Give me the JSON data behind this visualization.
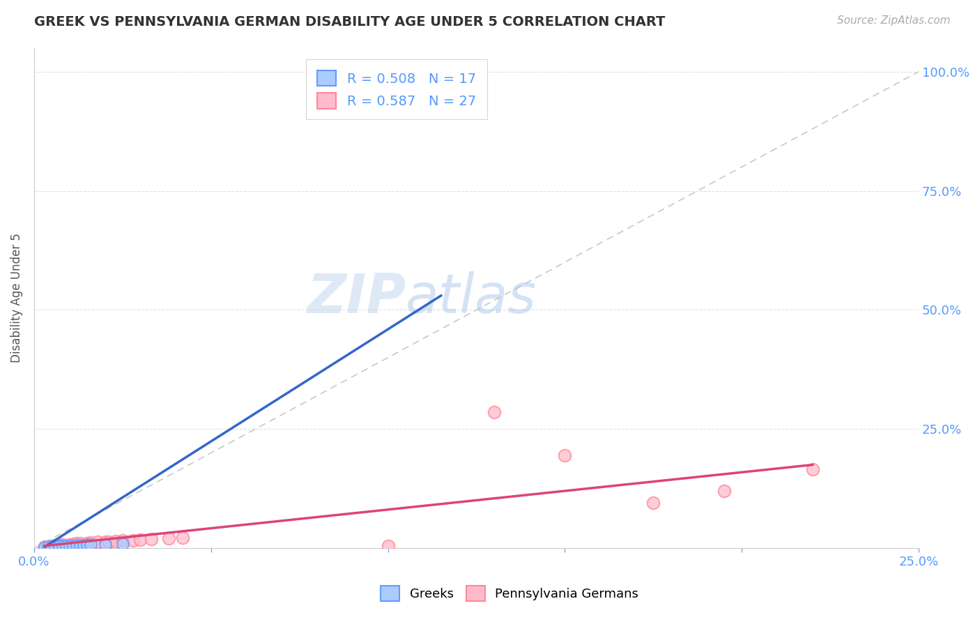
{
  "title": "GREEK VS PENNSYLVANIA GERMAN DISABILITY AGE UNDER 5 CORRELATION CHART",
  "source": "Source: ZipAtlas.com",
  "ylabel": "Disability Age Under 5",
  "xlim": [
    0.0,
    0.25
  ],
  "ylim": [
    0.0,
    1.0
  ],
  "background_color": "#ffffff",
  "greek_R": 0.508,
  "greek_N": 17,
  "pa_R": 0.587,
  "pa_N": 27,
  "title_color": "#333333",
  "axis_label_color": "#555555",
  "tick_label_color": "#5599ff",
  "greek_color": "#6699ff",
  "pa_color": "#ff8899",
  "greek_line_color": "#3366cc",
  "pa_line_color": "#dd4477",
  "ref_line_color": "#bbbbbb",
  "legend_greek_fill": "#aaccff",
  "legend_pa_fill": "#ffbbcc",
  "grid_color": "#dddddd",
  "greek_points_x": [
    0.003,
    0.004,
    0.005,
    0.006,
    0.007,
    0.007,
    0.008,
    0.009,
    0.01,
    0.011,
    0.012,
    0.013,
    0.014,
    0.015,
    0.016,
    0.02,
    0.025
  ],
  "greek_points_y": [
    0.002,
    0.003,
    0.003,
    0.003,
    0.004,
    0.004,
    0.004,
    0.005,
    0.005,
    0.005,
    0.006,
    0.006,
    0.006,
    0.007,
    0.007,
    0.008,
    0.009
  ],
  "pa_points_x": [
    0.003,
    0.005,
    0.006,
    0.007,
    0.008,
    0.01,
    0.011,
    0.012,
    0.013,
    0.015,
    0.016,
    0.018,
    0.02,
    0.021,
    0.023,
    0.025,
    0.028,
    0.03,
    0.033,
    0.038,
    0.042,
    0.1,
    0.13,
    0.15,
    0.175,
    0.195,
    0.22
  ],
  "pa_points_y": [
    0.003,
    0.005,
    0.006,
    0.007,
    0.008,
    0.007,
    0.009,
    0.01,
    0.01,
    0.011,
    0.012,
    0.013,
    0.014,
    0.013,
    0.015,
    0.016,
    0.017,
    0.018,
    0.019,
    0.02,
    0.022,
    0.004,
    0.285,
    0.195,
    0.095,
    0.12,
    0.165
  ],
  "greek_line_x0": 0.003,
  "greek_line_x1": 0.115,
  "greek_line_y0": 0.003,
  "greek_line_y1": 0.53,
  "pa_line_x0": 0.003,
  "pa_line_x1": 0.22,
  "pa_line_y0": 0.005,
  "pa_line_y1": 0.175,
  "ref_line_x0": 0.0,
  "ref_line_x1": 0.25,
  "ref_line_y0": 0.0,
  "ref_line_y1": 1.0
}
